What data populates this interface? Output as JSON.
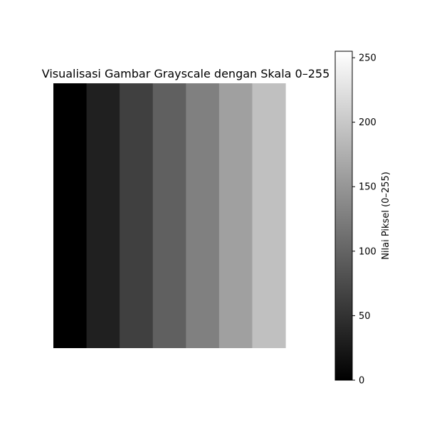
{
  "chart_data": {
    "type": "heatmap",
    "title": "Visualisasi Gambar Grayscale dengan Skala 0–255",
    "xlabel": "",
    "ylabel": "",
    "axes_visible": false,
    "cmap": "gray",
    "values": [
      [
        0,
        32,
        64,
        96,
        128,
        160,
        192
      ]
    ],
    "rows_shown": 8,
    "columns": 7,
    "vmin": 0,
    "vmax": 255,
    "colorbar": {
      "label": "Nilai Piksel (0–255)",
      "ticks": [
        0,
        50,
        100,
        150,
        200,
        250
      ],
      "tick_labels": [
        "0",
        "50",
        "100",
        "150",
        "200",
        "250"
      ],
      "placement": "right"
    }
  }
}
